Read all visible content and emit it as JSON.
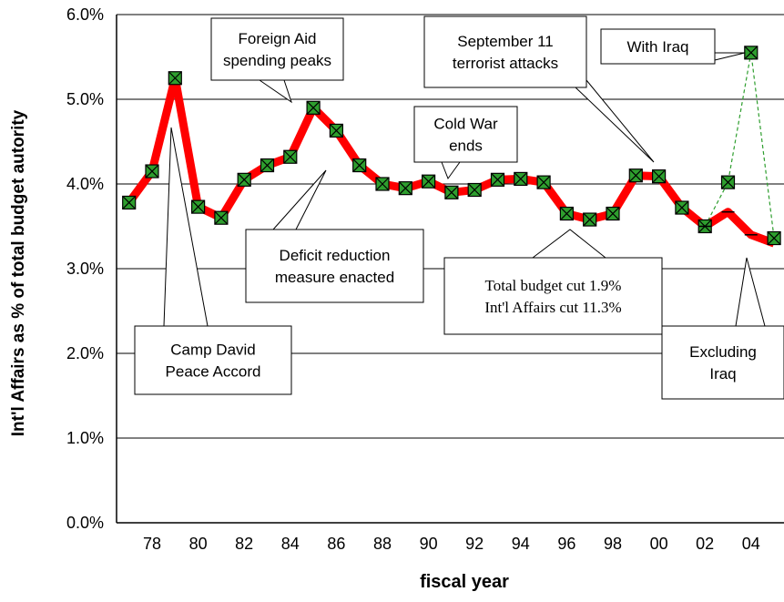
{
  "chart_data": {
    "type": "line",
    "xlabel": "fiscal year",
    "ylabel": "Int'l Affairs as % of total budget autority",
    "categories": [
      null,
      "78",
      null,
      "80",
      null,
      "82",
      null,
      "84",
      null,
      "86",
      null,
      "88",
      null,
      "90",
      null,
      "92",
      null,
      "94",
      null,
      "96",
      null,
      "98",
      null,
      "00",
      null,
      "02",
      null,
      "04",
      null
    ],
    "series": [
      {
        "color": "#ff0000",
        "values": [
          3.78,
          4.15,
          5.25,
          3.73,
          3.6,
          4.05,
          4.22,
          4.32,
          4.9,
          4.63,
          4.22,
          4.0,
          3.95,
          4.03,
          3.9,
          3.93,
          4.05,
          4.06,
          4.02,
          3.65,
          3.58,
          3.65,
          4.1,
          4.09,
          3.72,
          3.5,
          3.67,
          3.4,
          3.3
        ]
      },
      {
        "color": "#2e9e2e",
        "dashed": true,
        "values": [
          null,
          null,
          null,
          null,
          null,
          null,
          null,
          null,
          null,
          null,
          null,
          null,
          null,
          null,
          null,
          null,
          null,
          null,
          null,
          null,
          null,
          null,
          null,
          null,
          null,
          3.5,
          4.02,
          5.55,
          3.36
        ]
      }
    ],
    "ylim": [
      0,
      6
    ],
    "yticks": [
      {
        "value": 0,
        "label": "0.0%"
      },
      {
        "value": 1,
        "label": "1.0%"
      },
      {
        "value": 2,
        "label": "2.0%"
      },
      {
        "value": 3,
        "label": "3.0%"
      },
      {
        "value": 4,
        "label": "4.0%"
      },
      {
        "value": 5,
        "label": "5.0%"
      },
      {
        "value": 6,
        "label": "6.0%"
      }
    ],
    "grid": true,
    "annotations": [
      {
        "text": [
          "Foreign Aid",
          "spending peaks"
        ]
      },
      {
        "text": [
          "September 11",
          "terrorist attacks"
        ]
      },
      {
        "text": [
          "With Iraq"
        ]
      },
      {
        "text": [
          "Cold War",
          "ends"
        ]
      },
      {
        "text": [
          "Deficit reduction",
          "measure enacted"
        ]
      },
      {
        "text": [
          "Total budget cut 1.9%",
          "Int'l Affairs cut 11.3%"
        ]
      },
      {
        "text": [
          "Camp David",
          "Peace Accord"
        ]
      },
      {
        "text": [
          "Excluding",
          "Iraq"
        ]
      }
    ]
  }
}
